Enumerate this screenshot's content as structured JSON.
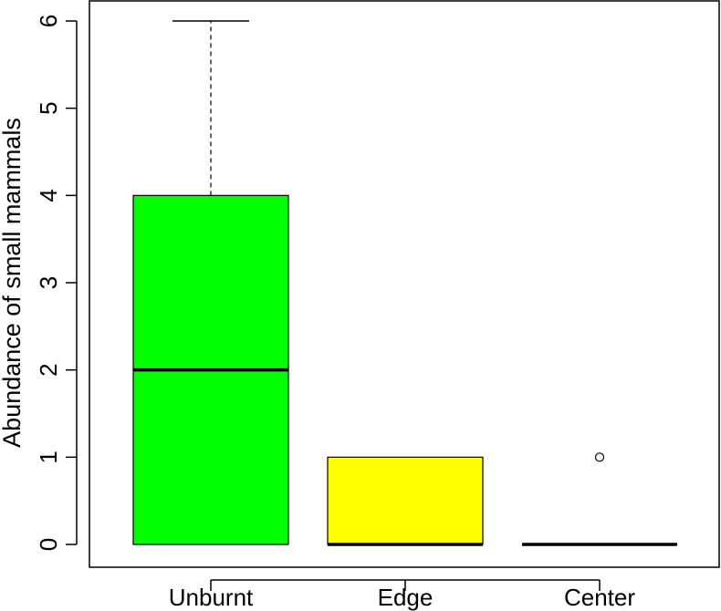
{
  "chart_data": {
    "type": "boxplot",
    "title": "",
    "xlabel": "",
    "ylabel": "Abundance of small mammals",
    "ylim": [
      0,
      6
    ],
    "yticks": [
      0,
      1,
      2,
      3,
      4,
      5,
      6
    ],
    "ytick_labels": [
      "0",
      "1",
      "2",
      "3",
      "4",
      "5",
      "6"
    ],
    "categories": [
      "Unburnt",
      "Edge",
      "Center"
    ],
    "boxes": [
      {
        "category": "Unburnt",
        "min": 0,
        "q1": 0,
        "median": 2,
        "q3": 4,
        "max": 6,
        "outliers": [],
        "color": "#00ff00"
      },
      {
        "category": "Edge",
        "min": 0,
        "q1": 0,
        "median": 0,
        "q3": 1,
        "max": 1,
        "outliers": [],
        "color": "#ffff00"
      },
      {
        "category": "Center",
        "min": 0,
        "q1": 0,
        "median": 0,
        "q3": 0,
        "max": 0,
        "outliers": [
          1
        ],
        "color": "#ffffff"
      }
    ],
    "grid": false,
    "legend": "none"
  }
}
